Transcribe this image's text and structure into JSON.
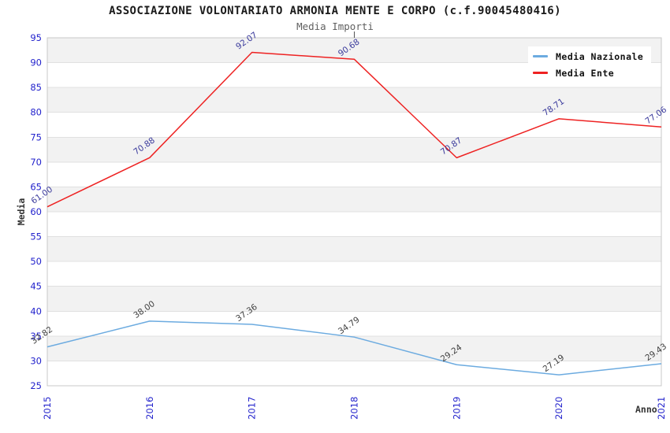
{
  "chart_data": {
    "type": "line",
    "title": "ASSOCIAZIONE VOLONTARIATO ARMONIA MENTE E CORPO (c.f.90045480416)",
    "subtitle": "Media Importi",
    "xlabel": "Anno",
    "ylabel": "Media",
    "categories": [
      "2015",
      "2016",
      "2017",
      "2018",
      "2019",
      "2020",
      "2021"
    ],
    "series": [
      {
        "name": "Media Nazionale",
        "color": "#6cabe0",
        "label_color": "#3f3f3f",
        "values": [
          32.82,
          38.0,
          37.36,
          34.79,
          29.24,
          27.19,
          29.43
        ]
      },
      {
        "name": "Media Ente",
        "color": "#ee2222",
        "label_color": "#3a3a9c",
        "values": [
          61.0,
          70.88,
          92.07,
          90.68,
          70.87,
          78.71,
          77.06
        ]
      }
    ],
    "ylim": [
      25,
      95
    ],
    "ytick_step": 5,
    "value_decimals": 2,
    "grid": "horizontal-bands",
    "legend_position": "top-right",
    "colors": {
      "tick_label": "#2323cc",
      "band_fill": "#f2f2f2",
      "band_alt_fill": "#ffffff",
      "gridline": "#e0e0e0",
      "plot_border": "#c8c8c8",
      "top_tick": "#555555"
    }
  }
}
